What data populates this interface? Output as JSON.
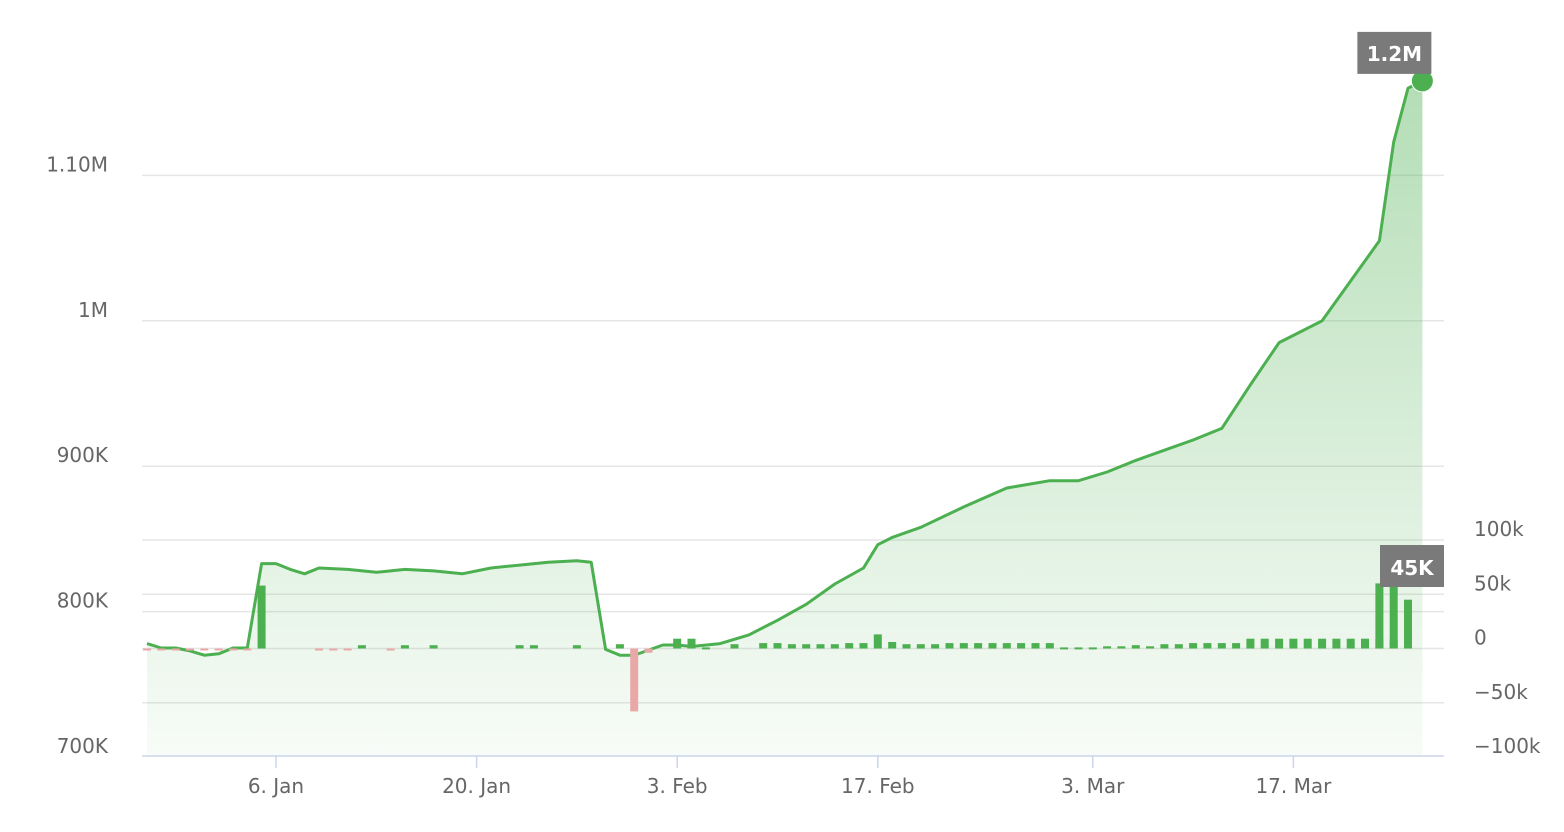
{
  "chart_data": {
    "type": "area",
    "x_start": "2023-12-28",
    "x_end": "2024-03-26",
    "xtick_labels": [
      {
        "label": "6. Jan",
        "date": "2024-01-06"
      },
      {
        "label": "20. Jan",
        "date": "2024-01-20"
      },
      {
        "label": "3. Feb",
        "date": "2024-02-03"
      },
      {
        "label": "17. Feb",
        "date": "2024-02-17"
      },
      {
        "label": "3. Mar",
        "date": "2024-03-03"
      },
      {
        "label": "17. Mar",
        "date": "2024-03-17"
      }
    ],
    "left_axis": {
      "ylim": [
        700000,
        1200000
      ],
      "ticks": [
        {
          "value": 700000,
          "label": "700K"
        },
        {
          "value": 800000,
          "label": "800K"
        },
        {
          "value": 900000,
          "label": "900K"
        },
        {
          "value": 1000000,
          "label": "1M"
        },
        {
          "value": 1100000,
          "label": "1.10M"
        }
      ]
    },
    "right_axis": {
      "ylim": [
        -100000,
        100000
      ],
      "ticks": [
        {
          "value": -100000,
          "label": "−100k"
        },
        {
          "value": -50000,
          "label": "−50k"
        },
        {
          "value": 0,
          "label": "0"
        },
        {
          "value": 50000,
          "label": "50k"
        },
        {
          "value": 100000,
          "label": "100k"
        }
      ]
    },
    "series": [
      {
        "type": "area",
        "axis": "left",
        "x": [
          "2023-12-28",
          "2023-12-29",
          "2023-12-30",
          "2023-12-31",
          "2024-01-01",
          "2024-01-02",
          "2024-01-03",
          "2024-01-04",
          "2024-01-05",
          "2024-01-06",
          "2024-01-07",
          "2024-01-08",
          "2024-01-09",
          "2024-01-11",
          "2024-01-13",
          "2024-01-15",
          "2024-01-17",
          "2024-01-19",
          "2024-01-21",
          "2024-01-23",
          "2024-01-25",
          "2024-01-27",
          "2024-01-28",
          "2024-01-29",
          "2024-01-30",
          "2024-01-31",
          "2024-02-02",
          "2024-02-03",
          "2024-02-04",
          "2024-02-06",
          "2024-02-08",
          "2024-02-10",
          "2024-02-12",
          "2024-02-14",
          "2024-02-16",
          "2024-02-17",
          "2024-02-18",
          "2024-02-20",
          "2024-02-23",
          "2024-02-26",
          "2024-02-29",
          "2024-03-02",
          "2024-03-04",
          "2024-03-06",
          "2024-03-08",
          "2024-03-10",
          "2024-03-12",
          "2024-03-14",
          "2024-03-16",
          "2024-03-19",
          "2024-03-23",
          "2024-03-24",
          "2024-03-25",
          "2024-03-26"
        ],
        "values": [
          778000,
          775000,
          775000,
          773000,
          770000,
          771000,
          775000,
          775000,
          833000,
          833000,
          829000,
          826000,
          830000,
          829000,
          827000,
          829000,
          828000,
          826000,
          830000,
          832000,
          834000,
          835000,
          834000,
          774000,
          770000,
          770000,
          777000,
          777000,
          776000,
          778000,
          784000,
          794000,
          805000,
          819000,
          830000,
          846000,
          851000,
          858000,
          872000,
          885000,
          890000,
          890000,
          896000,
          904000,
          911000,
          918000,
          926000,
          956000,
          985000,
          1000000,
          1055000,
          1123000,
          1160000,
          1165000
        ]
      },
      {
        "type": "bar",
        "axis": "right",
        "x": [
          "2023-12-28",
          "2023-12-29",
          "2023-12-30",
          "2023-12-31",
          "2024-01-01",
          "2024-01-02",
          "2024-01-03",
          "2024-01-04",
          "2024-01-05",
          "2024-01-09",
          "2024-01-10",
          "2024-01-11",
          "2024-01-12",
          "2024-01-14",
          "2024-01-15",
          "2024-01-17",
          "2024-01-23",
          "2024-01-24",
          "2024-01-27",
          "2024-01-30",
          "2024-02-03",
          "2024-02-04",
          "2024-02-05",
          "2024-02-07",
          "2024-02-09",
          "2024-02-10",
          "2024-02-11",
          "2024-02-12",
          "2024-02-13",
          "2024-02-14",
          "2024-02-15",
          "2024-02-16",
          "2024-02-17",
          "2024-02-18",
          "2024-02-19",
          "2024-02-20",
          "2024-02-21",
          "2024-02-22",
          "2024-02-23",
          "2024-02-24",
          "2024-02-25",
          "2024-02-26",
          "2024-02-27",
          "2024-02-28",
          "2024-02-29",
          "2024-03-01",
          "2024-03-02",
          "2024-03-03",
          "2024-03-04",
          "2024-03-05",
          "2024-03-06",
          "2024-03-07",
          "2024-03-08",
          "2024-03-09",
          "2024-03-10",
          "2024-03-11",
          "2024-03-12",
          "2024-03-13",
          "2024-03-14",
          "2024-03-15",
          "2024-03-16",
          "2024-03-17",
          "2024-03-18",
          "2024-03-19",
          "2024-03-20",
          "2024-03-21",
          "2024-03-22",
          "2024-03-23",
          "2024-03-24",
          "2024-03-25"
        ],
        "values": [
          -1000,
          -1000,
          -1000,
          -1000,
          -1000,
          -1000,
          -1000,
          -1000,
          58000,
          -1000,
          -1000,
          -1000,
          3000,
          -1000,
          3000,
          3000,
          3000,
          3000,
          3000,
          4000,
          9000,
          9000,
          1000,
          4000,
          5000,
          5000,
          4000,
          4000,
          4000,
          4000,
          5000,
          5000,
          13000,
          6000,
          4000,
          4000,
          4000,
          5000,
          5000,
          5000,
          5000,
          5000,
          5000,
          5000,
          5000,
          1000,
          1000,
          1000,
          2000,
          2000,
          3000,
          2000,
          4000,
          4000,
          5000,
          5000,
          5000,
          5000,
          9000,
          9000,
          9000,
          9000,
          9000,
          9000,
          9000,
          9000,
          9000,
          9000,
          9000,
          9000
        ]
      },
      {
        "type": "bar",
        "axis": "right",
        "x": [
          "2024-01-31",
          "2024-02-01",
          "2024-03-23",
          "2024-03-24",
          "2024-03-25"
        ],
        "values": [
          -58000,
          -4000,
          60000,
          70000,
          45000
        ]
      }
    ],
    "tooltip_top_label": "1.2M",
    "tooltip_bottom_label": "45K",
    "colors": {
      "line": "#4caf50",
      "fill": "#4caf50",
      "bar_positive": "#4caf50",
      "bar_negative": "#e8a8a8",
      "tag_bg": "#7a7a7a",
      "grid": "#e6e6e6",
      "axis_text": "#666666"
    },
    "grid": true
  }
}
